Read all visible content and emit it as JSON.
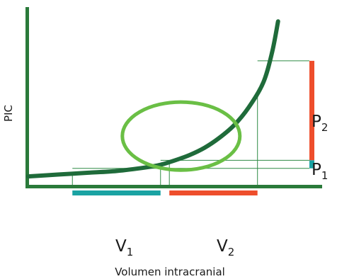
{
  "chart_data": {
    "type": "line",
    "ylabel": "PIC",
    "xlabel": "Volumen intracranial",
    "axes": {
      "xlim": [
        0,
        100
      ],
      "ylim": [
        0,
        100
      ],
      "ticks": false,
      "grid": false
    },
    "series": [
      {
        "x": [
          0,
          10,
          20,
          30,
          40,
          45,
          50,
          55,
          60,
          65,
          70,
          75,
          80,
          83,
          85
        ],
        "y": [
          5.5,
          6.5,
          7.5,
          8.5,
          10.5,
          12,
          14.5,
          17.5,
          21.5,
          27,
          34,
          44,
          58,
          75,
          92
        ]
      }
    ],
    "ranges": {
      "V1": {
        "label": "V",
        "subscript": "1",
        "x": [
          15,
          45
        ],
        "color": "#1aa3a3"
      },
      "V2": {
        "label": "V",
        "subscript": "2",
        "x": [
          48,
          78
        ],
        "color": "#ee4e2c"
      },
      "P1": {
        "label": "P",
        "subscript": "1",
        "y": [
          10,
          14.5
        ],
        "color": "#1aa3a3"
      },
      "P2": {
        "label": "P",
        "subscript": "2",
        "y": [
          14.5,
          70
        ],
        "color": "#ee4e2c"
      }
    },
    "guides": {
      "verticals_x": [
        15,
        45,
        48,
        78
      ],
      "horizontals_y": [
        10,
        14.5,
        70
      ]
    },
    "highlight_ellipse": {
      "cx": 52,
      "cy": 28,
      "rx": 20,
      "ry": 19,
      "color": "#6abf45"
    },
    "colors": {
      "axes": "#2a7a3a",
      "curve": "#1f6b3a",
      "guides": "#2f8a45"
    }
  }
}
